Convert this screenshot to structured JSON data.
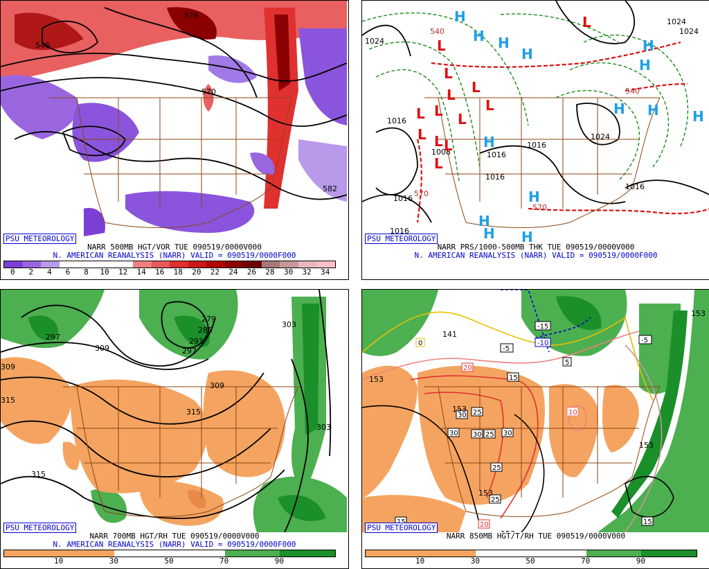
{
  "branding": "PSU METEOROLOGY",
  "panels": [
    {
      "title": "NARR 500MB HGT/VOR TUE 090519/0000V000",
      "subtitle": "N. AMERICAN REANALYSIS (NARR) VALID = 090519/0000F000",
      "colorbar": {
        "ticks": [
          "0",
          "2",
          "4",
          "6",
          "8",
          "10",
          "12",
          "14",
          "16",
          "18",
          "20",
          "22",
          "24",
          "26",
          "28",
          "30",
          "32",
          "34"
        ],
        "colors": [
          "#7b3fd6",
          "#9966e0",
          "#b899ea",
          "#ffffff",
          "#ffffff",
          "#ffffff",
          "#ffffff",
          "#f08080",
          "#e85a5a",
          "#e03030",
          "#c81818",
          "#b00000",
          "#8b0000",
          "#6e0000",
          "#aa7777",
          "#c89898",
          "#e8b8c0",
          "#ffc0cb"
        ]
      },
      "contour_labels": [
        "546",
        "576",
        "570",
        "582"
      ]
    },
    {
      "title": "NARR PRS/1000-500MB THK TUE 090519/0000V000",
      "subtitle": "N. AMERICAN REANALYSIS (NARR) VALID = 090519/0000F000",
      "pressure_labels": [
        "1024",
        "1016",
        "1008",
        "1016",
        "1016",
        "1016",
        "1024",
        "1016",
        "1016",
        "1016",
        "1024",
        "1024"
      ],
      "thickness_labels": [
        "540",
        "570",
        "570",
        "540"
      ],
      "highs": "H",
      "lows": "L"
    },
    {
      "title": "NARR 700MB HGT/RH TUE 090519/0000V000",
      "subtitle": "N. AMERICAN REANALYSIS (NARR) VALID = 090519/0000F000",
      "colorbar": {
        "ticks": [
          "10",
          "30",
          "50",
          "70",
          "90"
        ],
        "colors": [
          "#f4a460",
          "#f4a460",
          "#ffffff",
          "#ffffff",
          "#4caf50",
          "#1b8f2a"
        ]
      },
      "contour_labels": [
        "297",
        "279",
        "285",
        "291",
        "297",
        "303",
        "309",
        "309",
        "315",
        "315",
        "315",
        "303",
        "309"
      ]
    },
    {
      "title": "NARR 850MB HGT/T/RH TUE 090519/0000V000",
      "subtitle": "",
      "colorbar": {
        "ticks": [
          "10",
          "30",
          "50",
          "70",
          "90"
        ],
        "colors": [
          "#f4a460",
          "#f4a460",
          "#ffffff",
          "#ffffff",
          "#4caf50",
          "#1b8f2a"
        ]
      },
      "temp_labels": [
        "-15",
        "-10",
        "-5",
        "-5",
        "0",
        "5",
        "15",
        "30",
        "25",
        "30",
        "30",
        "30",
        "25",
        "25",
        "25",
        "20",
        "20",
        "15",
        "10",
        "15"
      ],
      "height_labels": [
        "141",
        "153",
        "153",
        "153",
        "153",
        "153",
        "153"
      ]
    }
  ]
}
